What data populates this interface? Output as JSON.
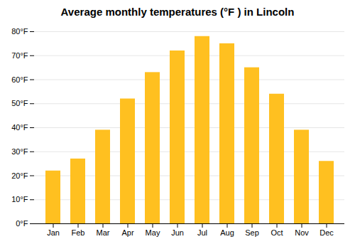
{
  "chart_data": {
    "type": "bar",
    "title": "Average monthly temperatures (°F ) in Lincoln",
    "categories": [
      "Jan",
      "Feb",
      "Mar",
      "Apr",
      "May",
      "Jun",
      "Jul",
      "Aug",
      "Sep",
      "Oct",
      "Nov",
      "Dec"
    ],
    "values": [
      22,
      27,
      39,
      52,
      63,
      72,
      78,
      75,
      65,
      54,
      39,
      26
    ],
    "color": "#FFC020",
    "ylim": [
      0,
      80
    ],
    "yticks": [
      {
        "value": 0,
        "label": "0°F"
      },
      {
        "value": 10,
        "label": "10°F"
      },
      {
        "value": 20,
        "label": "20°F"
      },
      {
        "value": 30,
        "label": "30°F"
      },
      {
        "value": 40,
        "label": "40°F"
      },
      {
        "value": 50,
        "label": "50°F"
      },
      {
        "value": 60,
        "label": "60°F"
      },
      {
        "value": 70,
        "label": "70°F"
      },
      {
        "value": 80,
        "label": "80°F"
      }
    ],
    "grid": true
  }
}
